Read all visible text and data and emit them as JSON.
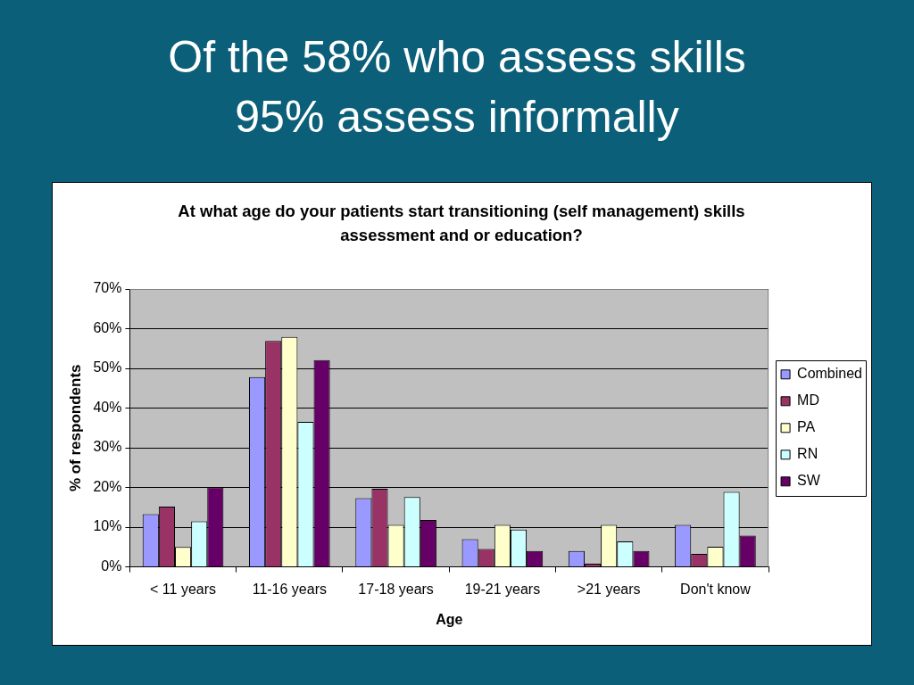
{
  "chart_data": {
    "type": "bar",
    "title": "Of the 58% who assess skills 95% assess informally",
    "subtitle": "At what age do your patients start transitioning (self management) skills assessment and or education?",
    "xlabel": "Age",
    "ylabel": "% of respondents",
    "categories": [
      "< 11 years",
      "11-16 years",
      "17-18 years",
      "19-21 years",
      ">21 years",
      "Don't know"
    ],
    "series": [
      {
        "name": "Combined",
        "color": "#9999ff",
        "values": [
          13.3,
          47.8,
          17.3,
          7.0,
          4.0,
          10.6
        ]
      },
      {
        "name": "MD",
        "color": "#993366",
        "values": [
          15.2,
          56.9,
          19.7,
          4.5,
          0.8,
          3.3
        ]
      },
      {
        "name": "PA",
        "color": "#ffffcc",
        "values": [
          5.0,
          57.9,
          10.6,
          10.6,
          10.6,
          5.1
        ]
      },
      {
        "name": "RN",
        "color": "#ccffff",
        "values": [
          11.5,
          36.5,
          17.6,
          9.4,
          6.4,
          18.9
        ]
      },
      {
        "name": "SW",
        "color": "#660066",
        "values": [
          20.0,
          52.1,
          11.8,
          4.0,
          4.0,
          7.9
        ]
      }
    ],
    "ylim": [
      0,
      70
    ],
    "yticks": [
      {
        "value": 0,
        "label": "0%"
      },
      {
        "value": 10,
        "label": "10%"
      },
      {
        "value": 20,
        "label": "20%"
      },
      {
        "value": 30,
        "label": "30%"
      },
      {
        "value": 40,
        "label": "40%"
      },
      {
        "value": 50,
        "label": "50%"
      },
      {
        "value": 60,
        "label": "60%"
      },
      {
        "value": 70,
        "label": "70%"
      }
    ],
    "grid": "y",
    "legend": "right"
  }
}
